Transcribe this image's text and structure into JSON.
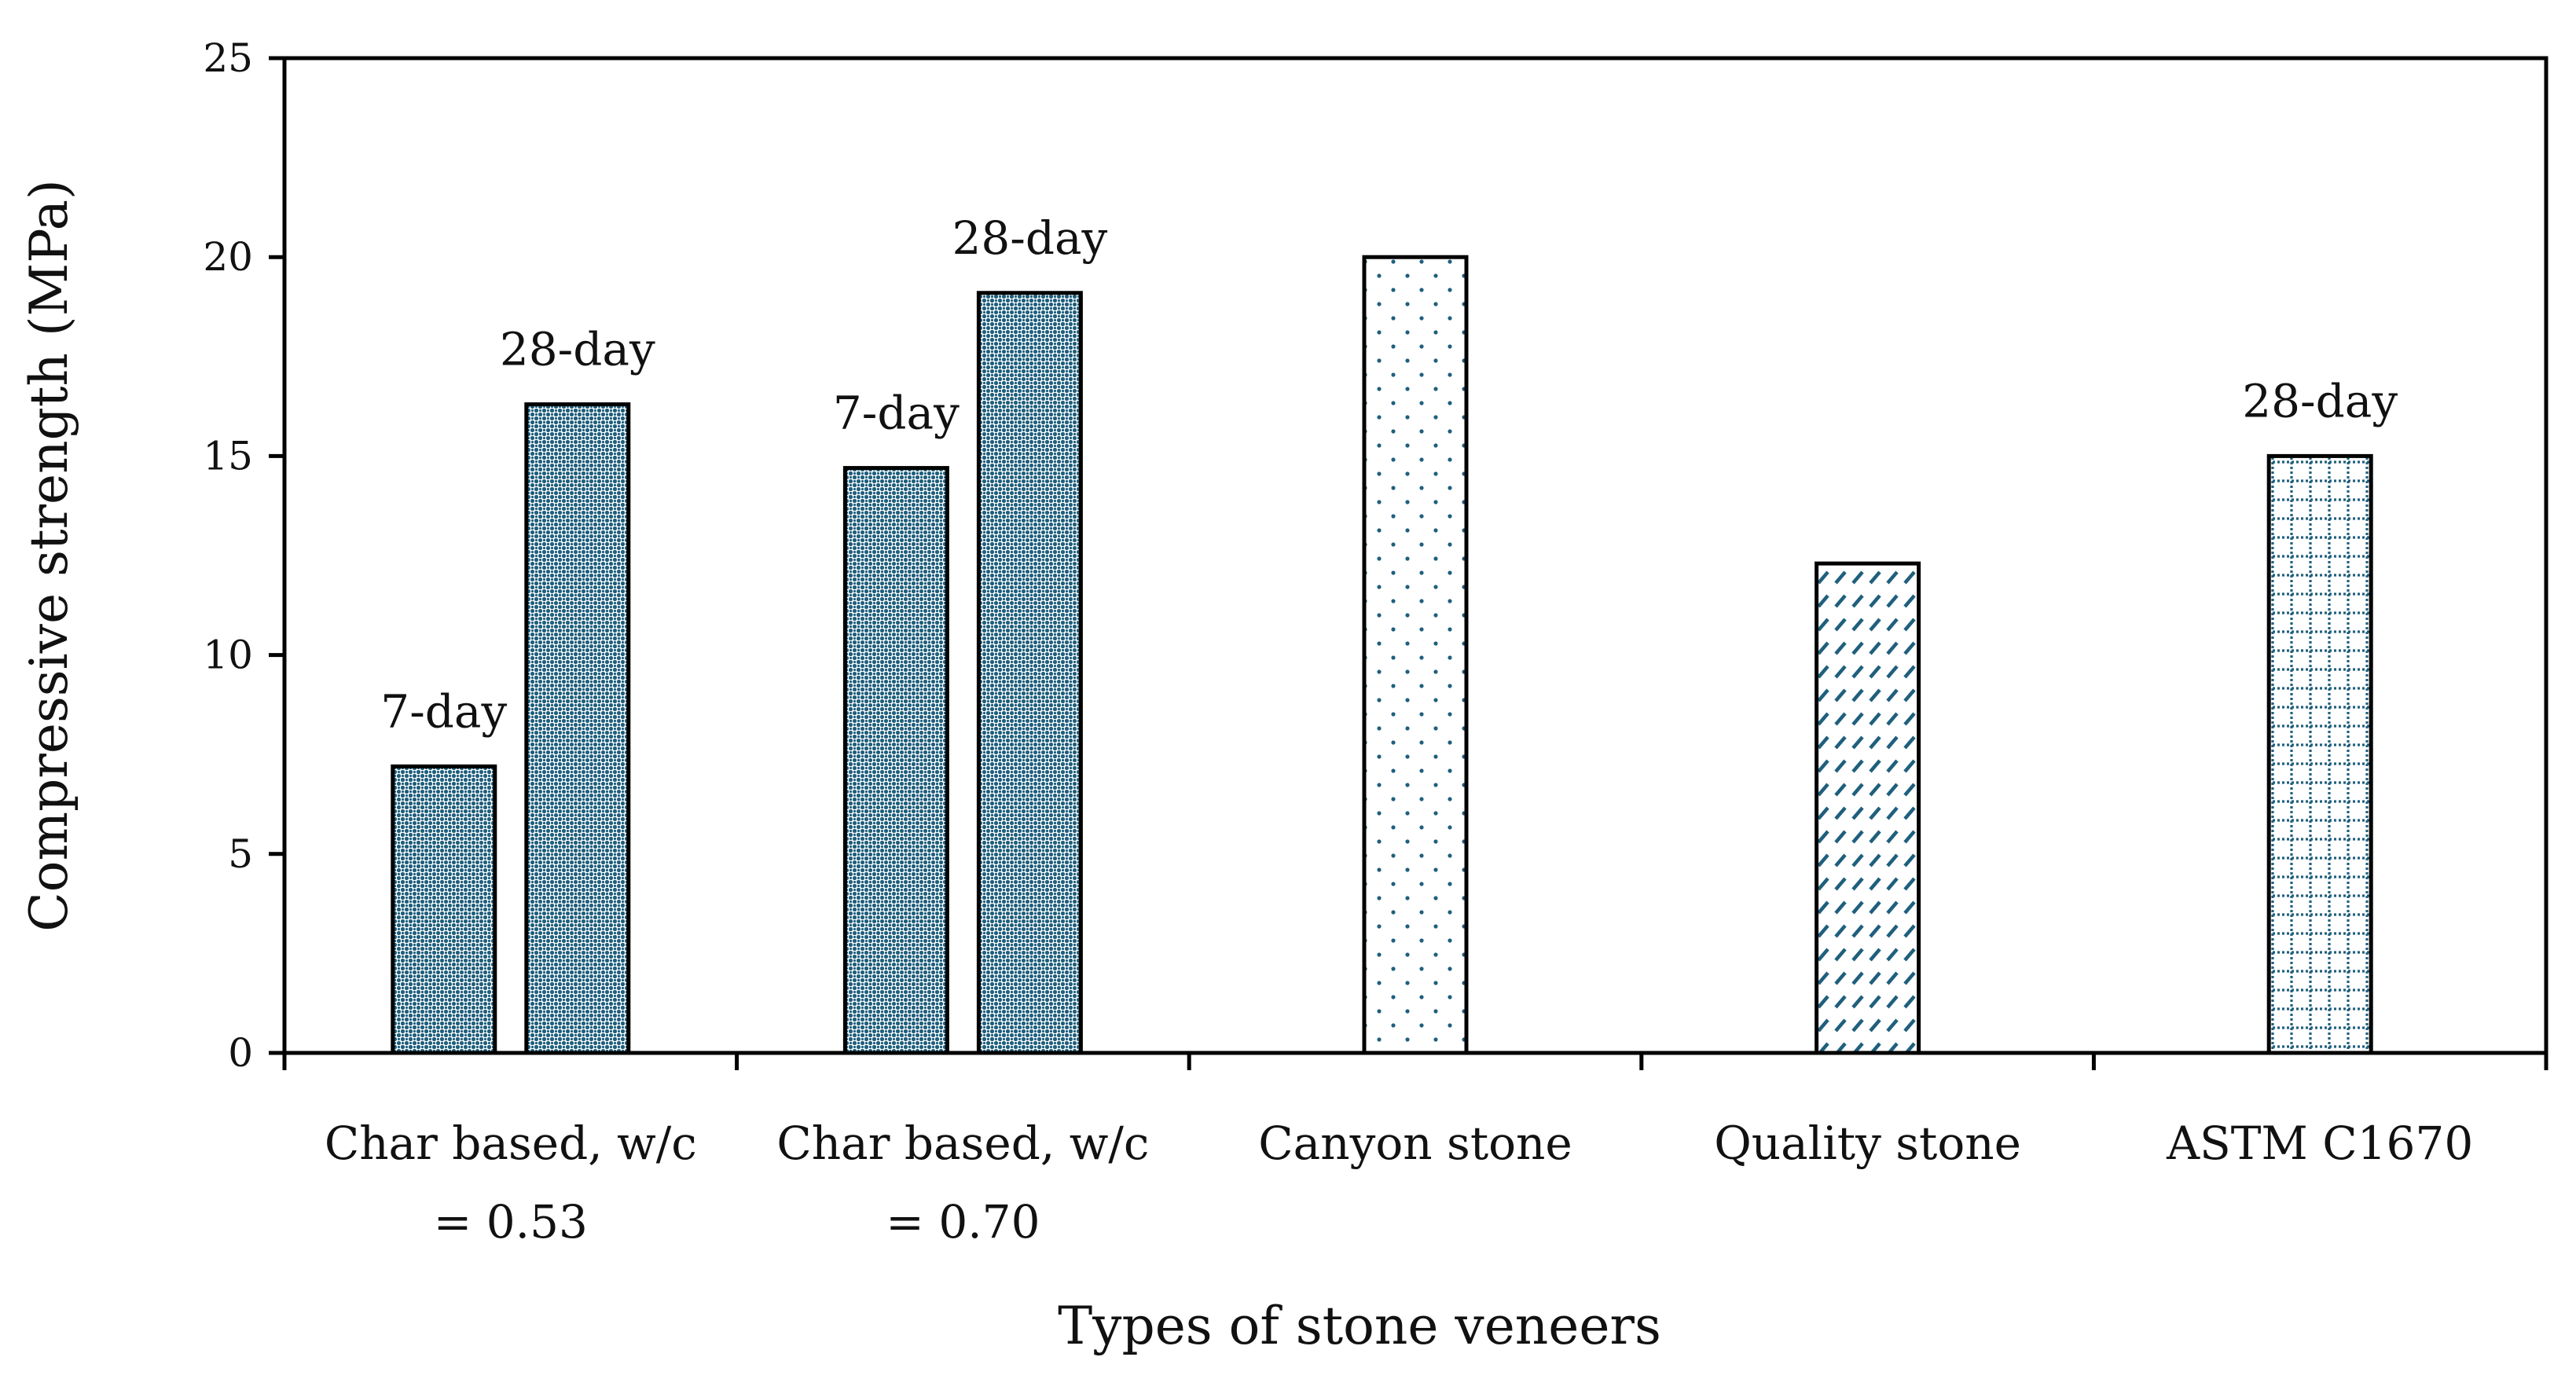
{
  "colors": {
    "pattern": "#1f5f7d",
    "stroke": "#000000",
    "background": "#ffffff"
  },
  "chart_data": {
    "type": "bar",
    "xlabel": "Types of stone veneers",
    "ylabel": "Compressive strength (MPa)",
    "ylim": [
      0,
      25
    ],
    "yticks": [
      0,
      5,
      10,
      15,
      20,
      25
    ],
    "grid": false,
    "categories": [
      {
        "line1": "Char based, w/c",
        "line2": "= 0.53"
      },
      {
        "line1": "Char based, w/c",
        "line2": "= 0.70"
      },
      {
        "line1": "Canyon stone",
        "line2": ""
      },
      {
        "line1": "Quality stone",
        "line2": ""
      },
      {
        "line1": "ASTM C1670",
        "line2": ""
      }
    ],
    "bars": [
      {
        "category_index": 0,
        "value": 7.2,
        "label": "7-day",
        "pattern": "dense-dots"
      },
      {
        "category_index": 0,
        "value": 16.3,
        "label": "28-day",
        "pattern": "dense-dots"
      },
      {
        "category_index": 1,
        "value": 14.7,
        "label": "7-day",
        "pattern": "dense-dots"
      },
      {
        "category_index": 1,
        "value": 19.1,
        "label": "28-day",
        "pattern": "dense-dots"
      },
      {
        "category_index": 2,
        "value": 20.0,
        "label": "",
        "pattern": "sparse-dots"
      },
      {
        "category_index": 3,
        "value": 12.3,
        "label": "",
        "pattern": "diagonal-dashes"
      },
      {
        "category_index": 4,
        "value": 15.0,
        "label": "28-day",
        "pattern": "dotted-grid"
      }
    ]
  }
}
